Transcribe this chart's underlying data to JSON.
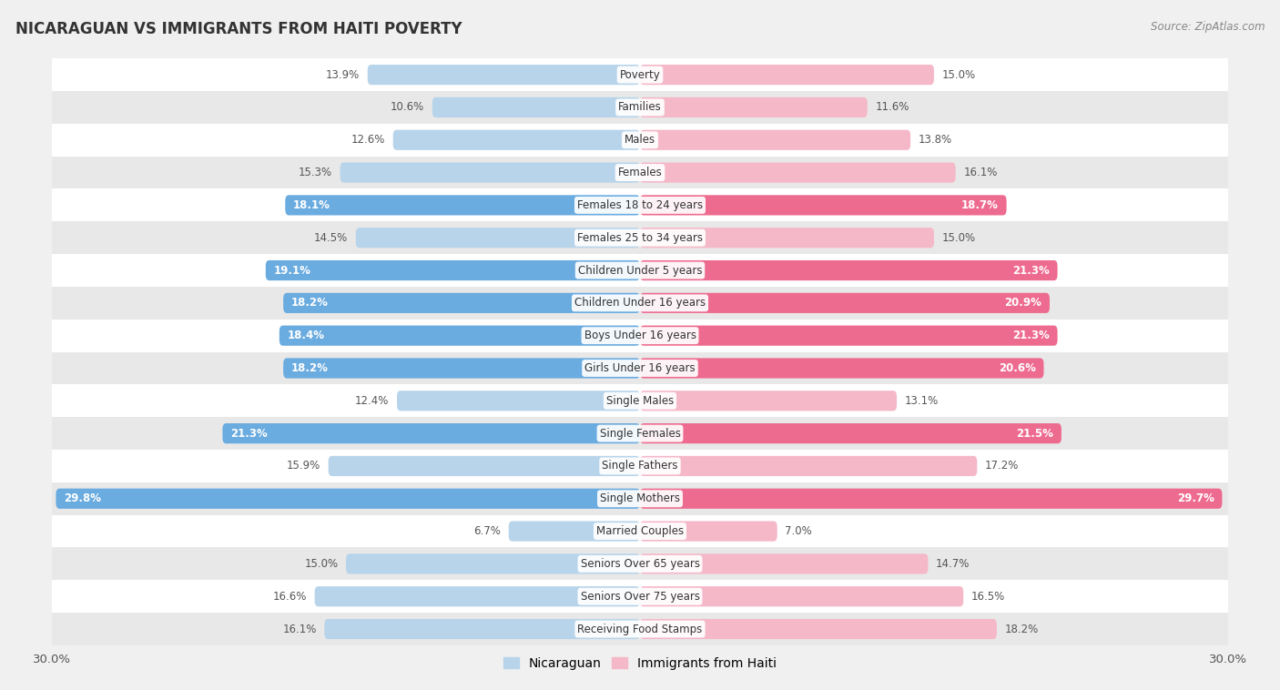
{
  "title": "NICARAGUAN VS IMMIGRANTS FROM HAITI POVERTY",
  "source": "Source: ZipAtlas.com",
  "categories": [
    "Poverty",
    "Families",
    "Males",
    "Females",
    "Females 18 to 24 years",
    "Females 25 to 34 years",
    "Children Under 5 years",
    "Children Under 16 years",
    "Boys Under 16 years",
    "Girls Under 16 years",
    "Single Males",
    "Single Females",
    "Single Fathers",
    "Single Mothers",
    "Married Couples",
    "Seniors Over 65 years",
    "Seniors Over 75 years",
    "Receiving Food Stamps"
  ],
  "nicaraguan": [
    13.9,
    10.6,
    12.6,
    15.3,
    18.1,
    14.5,
    19.1,
    18.2,
    18.4,
    18.2,
    12.4,
    21.3,
    15.9,
    29.8,
    6.7,
    15.0,
    16.6,
    16.1
  ],
  "haiti": [
    15.0,
    11.6,
    13.8,
    16.1,
    18.7,
    15.0,
    21.3,
    20.9,
    21.3,
    20.6,
    13.1,
    21.5,
    17.2,
    29.7,
    7.0,
    14.7,
    16.5,
    18.2
  ],
  "highlight": [
    false,
    false,
    false,
    false,
    true,
    false,
    true,
    true,
    true,
    true,
    false,
    true,
    false,
    true,
    false,
    false,
    false,
    false
  ],
  "color_blue_normal": "#b8d4ea",
  "color_pink_normal": "#f5b8c8",
  "color_blue_highlight": "#6aabe0",
  "color_pink_highlight": "#ee6b90",
  "axis_max": 30.0,
  "bg_color": "#f0f0f0",
  "row_color_odd": "#ffffff",
  "row_color_even": "#e8e8e8",
  "legend_nicaraguan": "Nicaraguan",
  "legend_haiti": "Immigrants from Haiti",
  "label_color_normal": "#555555",
  "label_color_highlight": "#ffffff"
}
